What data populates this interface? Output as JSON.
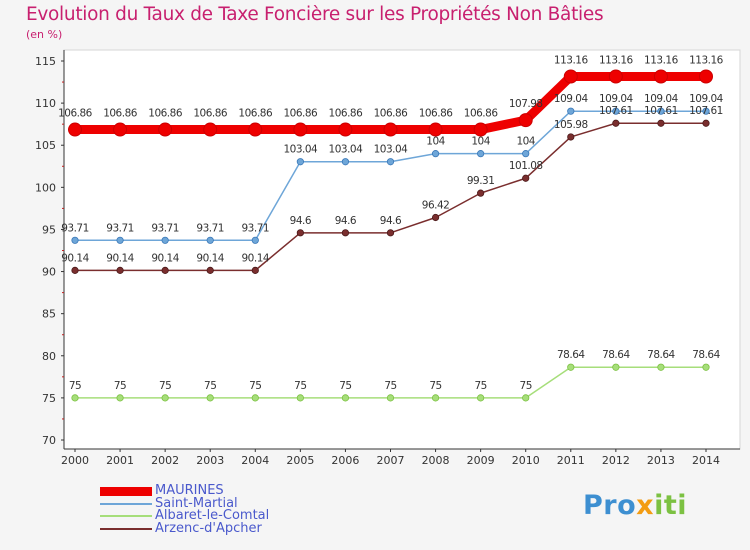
{
  "title": "Evolution du Taux de Taxe Foncière sur les Propriétés Non Bâties",
  "unit": "(en %)",
  "logo": {
    "parts": [
      "Pro",
      "x",
      "iti"
    ],
    "colors": [
      "#3d8fd1",
      "#f39c12",
      "#7cc142"
    ]
  },
  "chart_data": {
    "type": "line",
    "title": "Evolution du Taux de Taxe Foncière sur les Propriétés Non Bâties",
    "ylabel": "(en %)",
    "xlabel": "",
    "ylim": [
      70,
      115
    ],
    "yticks": [
      70,
      75,
      80,
      85,
      90,
      95,
      100,
      105,
      110,
      115
    ],
    "grid": false,
    "x": [
      "2000",
      "2001",
      "2002",
      "2003",
      "2004",
      "2005",
      "2006",
      "2007",
      "2008",
      "2009",
      "2010",
      "2011",
      "2012",
      "2013",
      "2014"
    ],
    "series": [
      {
        "name": "MAURINES",
        "color": "#ee0000",
        "values": [
          106.86,
          106.86,
          106.86,
          106.86,
          106.86,
          106.86,
          106.86,
          106.86,
          106.86,
          106.86,
          107.98,
          113.16,
          113.16,
          113.16,
          113.16
        ],
        "labels": [
          "106.86",
          "106.86",
          "106.86",
          "106.86",
          "106.86",
          "106.86",
          "106.86",
          "106.86",
          "106.86",
          "106.86",
          "107.98",
          "113.16",
          "113.16",
          "113.16",
          "113.16"
        ]
      },
      {
        "name": "Saint-Martial",
        "color": "#6ea6d8",
        "values": [
          93.71,
          93.71,
          93.71,
          93.71,
          93.71,
          103.04,
          103.04,
          103.04,
          104,
          104,
          104,
          109.04,
          109.04,
          109.04,
          109.04
        ],
        "labels": [
          "93.71",
          "93.71",
          "93.71",
          "93.71",
          "93.71",
          "103.04",
          "103.04",
          "103.04",
          "104",
          "104",
          "104",
          "109.04",
          "109.04",
          "109.04",
          "109.04"
        ]
      },
      {
        "name": "Albaret-le-Comtal",
        "color": "#a6de7a",
        "values": [
          75,
          75,
          75,
          75,
          75,
          75,
          75,
          75,
          75,
          75,
          75,
          78.64,
          78.64,
          78.64,
          78.64
        ],
        "labels": [
          "75",
          "75",
          "75",
          "75",
          "75",
          "75",
          "75",
          "75",
          "75",
          "75",
          "75",
          "78.64",
          "78.64",
          "78.64",
          "78.64"
        ]
      },
      {
        "name": "Arzenc-d'Apcher",
        "color": "#7a2e2e",
        "values": [
          90.14,
          90.14,
          90.14,
          90.14,
          90.14,
          94.6,
          94.6,
          94.6,
          96.42,
          99.31,
          101.08,
          105.98,
          107.61,
          107.61,
          107.61
        ],
        "labels": [
          "90.14",
          "90.14",
          "90.14",
          "90.14",
          "90.14",
          "94.6",
          "94.6",
          "94.6",
          "96.42",
          "99.31",
          "101.08",
          "105.98",
          "107.61",
          "107.61",
          "107.61"
        ]
      }
    ]
  }
}
